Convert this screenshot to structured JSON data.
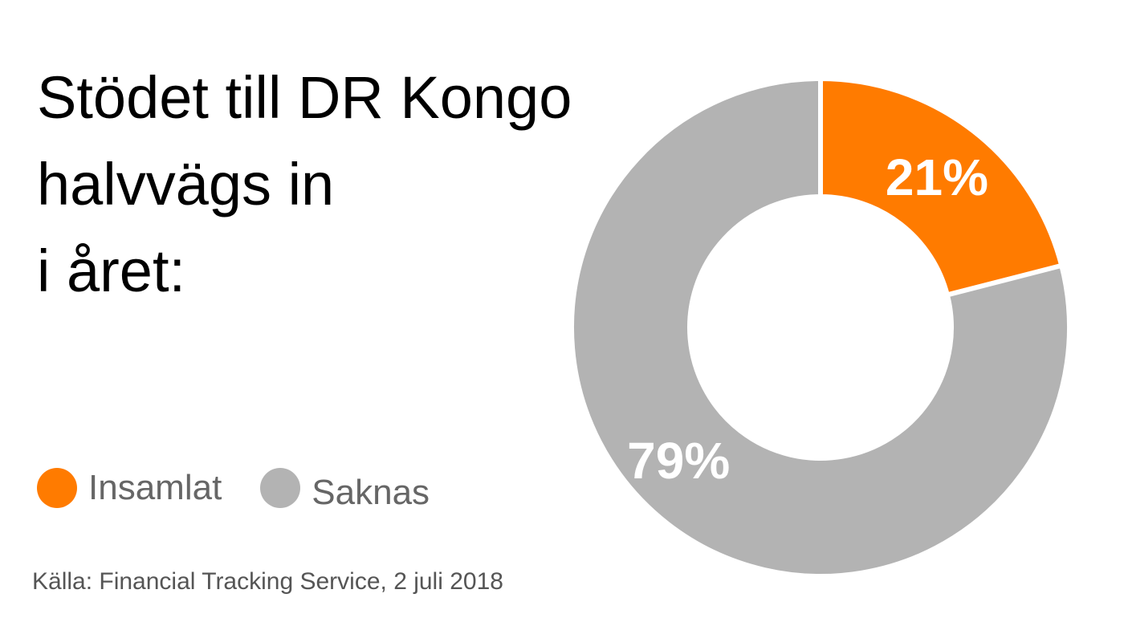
{
  "title_lines": [
    "Stödet till DR Kongo",
    "halvvägs in",
    "i året:"
  ],
  "legend": [
    {
      "label": "Insamlat",
      "color": "#FF7B00"
    },
    {
      "label": "Saknas",
      "color": "#B3B3B3"
    }
  ],
  "source": "Källa: Financial Tracking Service, 2 juli 2018",
  "chart_data": {
    "type": "pie",
    "title": "Stödet till DR Kongo halvvägs in i året:",
    "categories": [
      "Insamlat",
      "Saknas"
    ],
    "values": [
      21,
      79
    ],
    "unit": "%",
    "value_labels": [
      "21%",
      "79%"
    ],
    "colors": [
      "#FF7B00",
      "#B3B3B3"
    ],
    "hole": true,
    "start": "12 o'clock",
    "direction": "clockwise",
    "legend_position": "bottom-left"
  }
}
